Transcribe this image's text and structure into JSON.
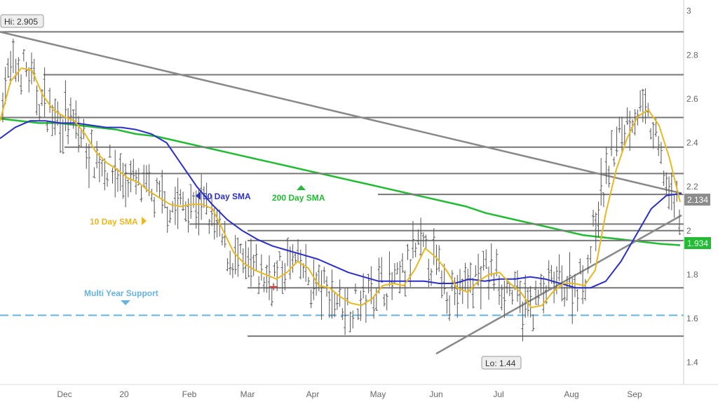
{
  "chart_data": {
    "type": "ohlc",
    "title": "",
    "xlabel": "",
    "ylabel": "",
    "ylim": [
      1.3,
      3.05
    ],
    "y_ticks": [
      "3",
      "2.8",
      "2.6",
      "2.4",
      "2.2",
      "2",
      "1.8",
      "1.6",
      "1.4"
    ],
    "x_ticks": [
      "Dec",
      "20",
      "Feb",
      "Mar",
      "Apr",
      "May",
      "Jun",
      "Jul",
      "Aug",
      "Sep"
    ],
    "grid": false,
    "annotations": {
      "hi": "Hi: 2.905",
      "lo": "Lo: 1.44",
      "sma10": "10 Day SMA",
      "sma50": "50 Day SMA",
      "sma200": "200 Day SMA",
      "support": "Multi Year Support",
      "last_price": "2.134",
      "sma200_value": "1.934"
    },
    "colors": {
      "price_bars": "#555555",
      "sma10": "#e8b820",
      "sma50": "#2a2fc8",
      "sma200": "#22bb33",
      "support": "#66b3e0",
      "levels": "#777777",
      "trend": "#888888"
    },
    "horizontal_levels": [
      {
        "start": "Oct",
        "value": 2.905
      },
      {
        "start": "Nov",
        "value": 2.71
      },
      {
        "start": "Oct",
        "value": 2.515
      },
      {
        "start": "Dec",
        "value": 2.38
      },
      {
        "start": "20",
        "value": 2.26
      },
      {
        "start": "May",
        "value": 2.165
      },
      {
        "start": "Feb",
        "value": 2.03
      },
      {
        "start": "Mar",
        "value": 2.0
      },
      {
        "start": "Mar",
        "value": 1.955
      },
      {
        "start": "Mar",
        "value": 1.74
      },
      {
        "start": "Mar",
        "value": 1.52
      }
    ],
    "support_level": 1.615,
    "trendlines": [
      {
        "from": [
          "Oct",
          2.905
        ],
        "to": [
          "Sep",
          2.17
        ]
      },
      {
        "from": [
          "Jun",
          1.44
        ],
        "to": [
          "Sep",
          2.07
        ]
      }
    ],
    "sma10": [
      2.5,
      2.68,
      2.74,
      2.73,
      2.62,
      2.55,
      2.52,
      2.5,
      2.44,
      2.36,
      2.31,
      2.28,
      2.24,
      2.22,
      2.18,
      2.15,
      2.12,
      2.11,
      2.12,
      2.12,
      2.1,
      2.0,
      1.9,
      1.85,
      1.82,
      1.8,
      1.78,
      1.81,
      1.86,
      1.83,
      1.75,
      1.74,
      1.7,
      1.67,
      1.66,
      1.69,
      1.75,
      1.76,
      1.75,
      1.82,
      1.92,
      1.88,
      1.82,
      1.74,
      1.72,
      1.77,
      1.8,
      1.81,
      1.76,
      1.72,
      1.65,
      1.66,
      1.72,
      1.76,
      1.76,
      1.75,
      1.82,
      2.08,
      2.28,
      2.42,
      2.52,
      2.55,
      2.48,
      2.33,
      2.13
    ],
    "sma50": [
      2.42,
      2.47,
      2.5,
      2.5,
      2.49,
      2.49,
      2.48,
      2.47,
      2.47,
      2.46,
      2.44,
      2.4,
      2.3,
      2.2,
      2.12,
      2.05,
      2.0,
      1.96,
      1.93,
      1.91,
      1.89,
      1.87,
      1.84,
      1.81,
      1.79,
      1.77,
      1.77,
      1.77,
      1.77,
      1.76,
      1.76,
      1.78,
      1.77,
      1.78,
      1.78,
      1.79,
      1.78,
      1.76,
      1.74,
      1.74,
      1.77,
      1.86,
      1.98,
      2.1,
      2.16,
      2.17
    ],
    "sma200": [
      2.51,
      2.5,
      2.49,
      2.49,
      2.48,
      2.47,
      2.46,
      2.44,
      2.43,
      2.41,
      2.39,
      2.37,
      2.35,
      2.33,
      2.31,
      2.29,
      2.27,
      2.25,
      2.23,
      2.21,
      2.19,
      2.17,
      2.15,
      2.13,
      2.11,
      2.08,
      2.06,
      2.04,
      2.02,
      2.0,
      1.98,
      1.97,
      1.96,
      1.95,
      1.94,
      1.934
    ]
  }
}
